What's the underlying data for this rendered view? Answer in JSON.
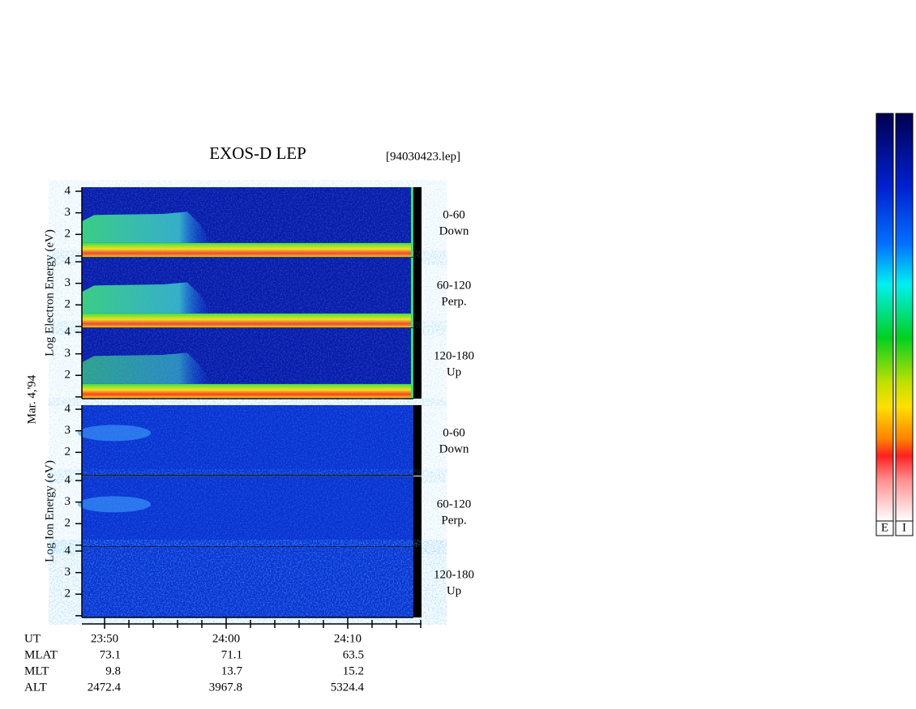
{
  "chart_data": {
    "type": "spectrogram",
    "title": "EXOS-D LEP",
    "file": "[94030423.lep]",
    "date_label": "Mar. 4,'94",
    "groups": [
      {
        "ylabel": "Log  Electron  Energy (eV)",
        "colorbar_label": "E",
        "panels": [
          {
            "label": "0-60",
            "sublabel": "Down"
          },
          {
            "label": "60-120",
            "sublabel": "Perp."
          },
          {
            "label": "120-180",
            "sublabel": "Up"
          }
        ]
      },
      {
        "ylabel": "Log  Ion  Energy (eV)",
        "colorbar_label": "I",
        "panels": [
          {
            "label": "0-60",
            "sublabel": "Down"
          },
          {
            "label": "60-120",
            "sublabel": "Perp."
          },
          {
            "label": "120-180",
            "sublabel": "Up"
          }
        ]
      }
    ],
    "ylim": [
      0.92,
      4.19
    ],
    "yticks": [
      2,
      3,
      4
    ],
    "minor_yticks": [
      1
    ],
    "xlim": [
      1428.13,
      1456.07
    ],
    "xticks": [
      {
        "value": 1430,
        "label": "23:50"
      },
      {
        "value": 1440,
        "label": "24:00"
      },
      {
        "value": 1450,
        "label": "24:10"
      }
    ],
    "minor_xticks": [
      1432,
      1434,
      1436,
      1438,
      1442,
      1444,
      1446,
      1448,
      1452,
      1454,
      1456
    ],
    "rows": [
      {
        "name": "UT"
      },
      {
        "name": "MLAT",
        "values": [
          73.1,
          71.1,
          63.5
        ]
      },
      {
        "name": "MLT",
        "values": [
          9.8,
          13.7,
          15.2
        ]
      },
      {
        "name": "ALT",
        "values": [
          2472.4,
          3967.8,
          5324.4
        ]
      }
    ]
  }
}
